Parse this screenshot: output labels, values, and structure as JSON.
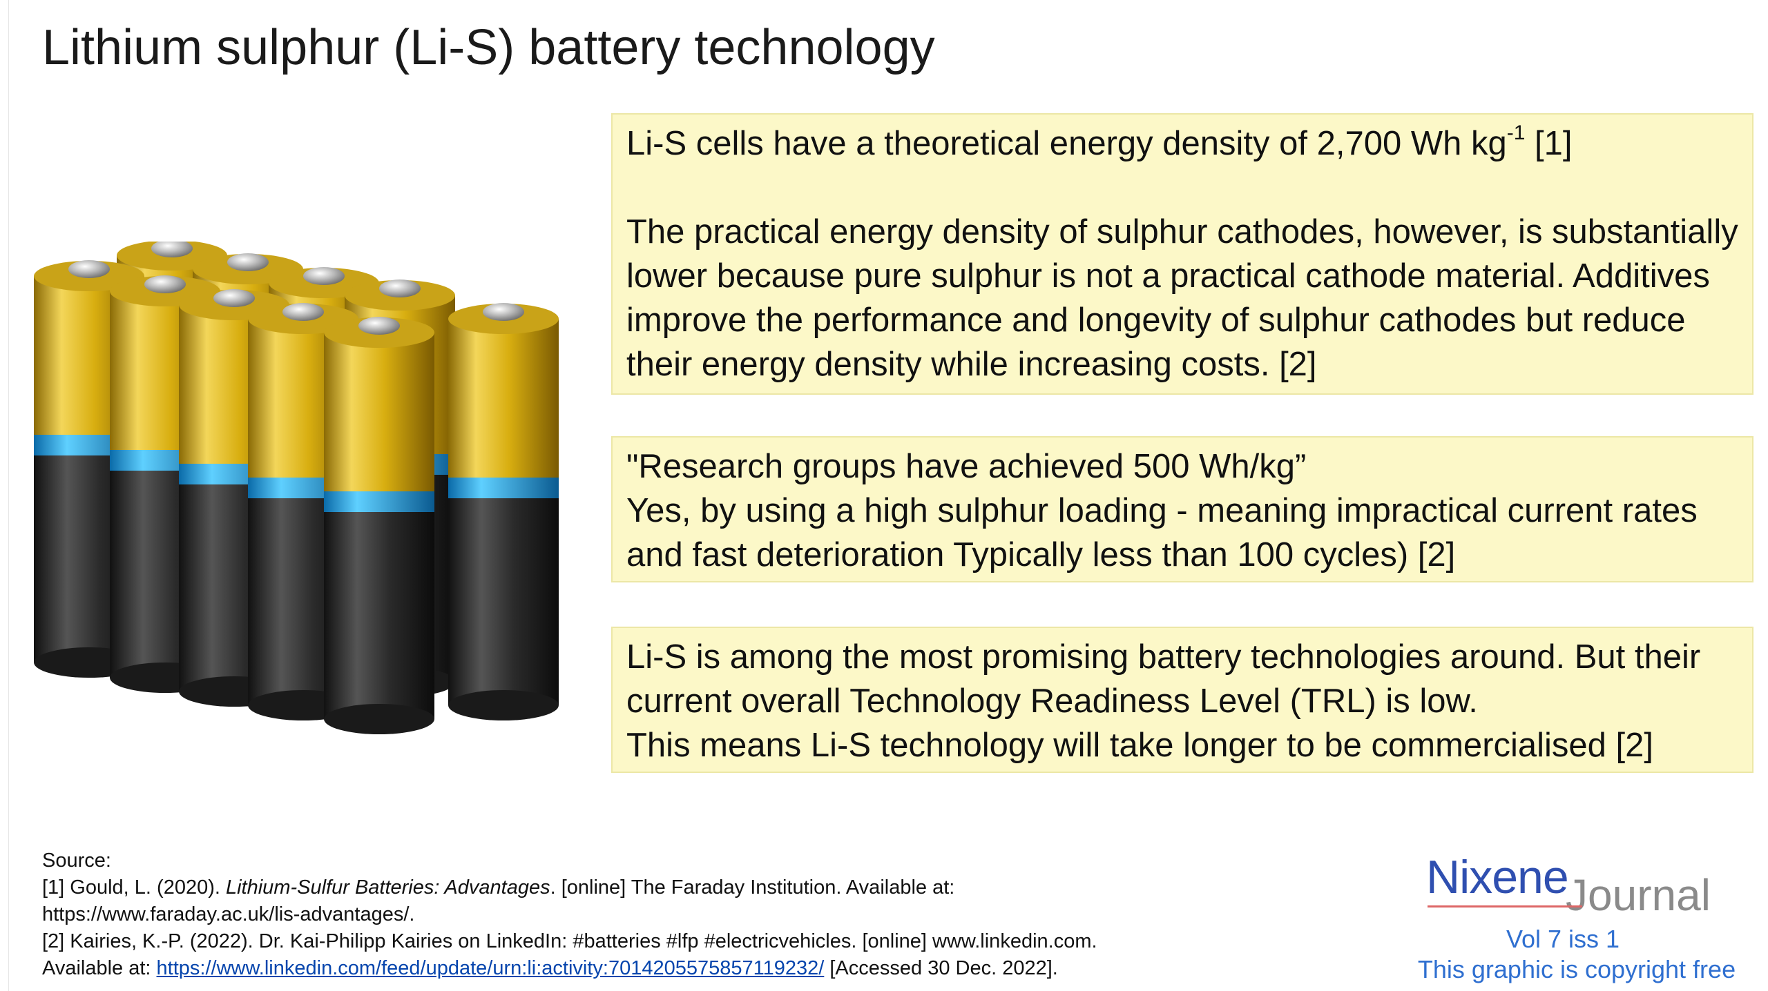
{
  "title": "Lithium sulphur (Li-S) battery technology",
  "box1": {
    "line1_pre": "Li-S cells have a theoretical energy density of 2,700 Wh kg",
    "line1_sup": "-1",
    "line1_post": " [1]",
    "para2": "The practical energy density of sulphur cathodes, however, is substantially lower because pure sulphur is not a practical cathode material. Additives improve the performance and longevity of sulphur cathodes but reduce their energy density while increasing costs. [2]"
  },
  "box2": {
    "quote": "\"Research groups have achieved 500 Wh/kg”",
    "text": "Yes, by using a high sulphur loading - meaning impractical current rates and fast deterioration Typically less than 100 cycles) [2]"
  },
  "box3": {
    "line1": "Li-S is among the most promising battery technologies around. But their current overall Technology Readiness Level (TRL) is low.",
    "line2": "This means Li-S technology will take longer to be commercialised [2]"
  },
  "sources": {
    "heading": "Source:",
    "ref1_pre": "[1] Gould, L. (2020). ",
    "ref1_title": "Lithium-Sulfur Batteries: Advantages",
    "ref1_post": ". [online] The Faraday Institution. Available at:",
    "ref1_url": "https://www.faraday.ac.uk/lis-advantages/.",
    "ref2_line1": "[2] Kairies, K.-P. (2022). Dr. Kai-Philipp Kairies on LinkedIn: #batteries #lfp #electricvehicles. [online] www.linkedin.com.",
    "ref2_pre": "Available at: ",
    "ref2_link": "https://www.linkedin.com/feed/update/urn:li:activity:7014205575857119232/",
    "ref2_post": "  [Accessed 30 Dec. 2022]."
  },
  "logo": {
    "brand": "Nixene",
    "sub": "Journal",
    "volume": "Vol 7 iss 1",
    "copyright": "This graphic is copyright free"
  },
  "colors": {
    "box_bg": "#fcf8c8",
    "battery_gold": "#e0b81e",
    "battery_blue": "#1aa8e8",
    "battery_body": "#2e2e2e",
    "brand_blue": "#2f4fb0"
  }
}
